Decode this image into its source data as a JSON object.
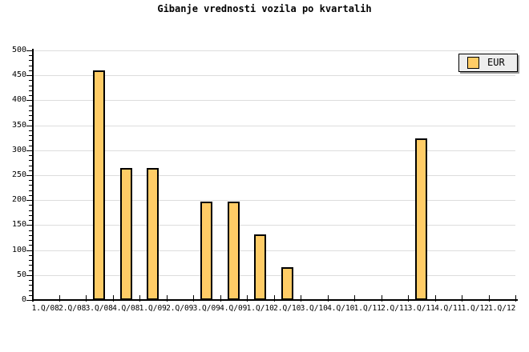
{
  "title": "Gibanje vrednosti vozila po kvartalih",
  "legend": {
    "label": "EUR",
    "swatch_color": "#ffcc66"
  },
  "chart_data": {
    "type": "bar",
    "title": "Gibanje vrednosti vozila po kvartalih",
    "categories": [
      "1.Q/08",
      "2.Q/08",
      "3.Q/08",
      "4.Q/08",
      "1.Q/09",
      "2.Q/09",
      "3.Q/09",
      "4.Q/09",
      "1.Q/10",
      "2.Q/10",
      "3.Q/10",
      "4.Q/10",
      "1.Q/11",
      "2.Q/11",
      "3.Q/11",
      "4.Q/11",
      "1.Q/12",
      "1.Q/12"
    ],
    "series": [
      {
        "name": "EUR",
        "values": [
          null,
          null,
          460,
          265,
          265,
          null,
          197,
          197,
          132,
          65,
          null,
          null,
          null,
          null,
          323,
          null,
          null,
          null
        ]
      }
    ],
    "xlabel": "",
    "ylabel": "",
    "ylim": [
      0,
      500
    ],
    "yticks": [
      0,
      50,
      100,
      150,
      200,
      250,
      300,
      350,
      400,
      450,
      500
    ],
    "yminor_step": 10,
    "grid": true,
    "legend_position": "top-right",
    "bar_color": "#ffcc66",
    "bar_border_color": "#000000",
    "grid_color": "#dddddd",
    "axis_color": "#000000"
  }
}
